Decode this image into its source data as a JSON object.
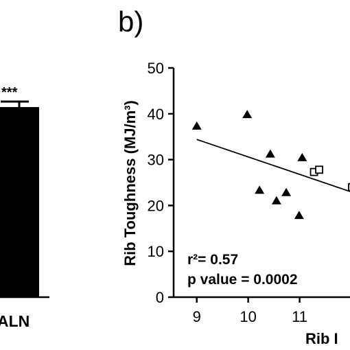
{
  "panel_label": "b)",
  "left_panel": {
    "bar_label": "ALN",
    "significance": "***"
  },
  "chart_data": {
    "type": "scatter",
    "ylabel": "Rib Toughness (MJ/m³)",
    "xlabel": "Rib I",
    "x_ticks": [
      "9",
      "10",
      "11"
    ],
    "y_ticks": [
      "0",
      "10",
      "20",
      "30",
      "40",
      "50"
    ],
    "xlim": [
      8.55,
      12.1
    ],
    "ylim": [
      0,
      50
    ],
    "annotation": {
      "r2_label": "r²= 0.57",
      "p_label": "p value = 0.0002"
    },
    "series": [
      {
        "marker": "triangle",
        "points": [
          [
            9.0,
            37.3
          ],
          [
            9.98,
            39.8
          ],
          [
            10.22,
            23.3
          ],
          [
            10.43,
            31.2
          ],
          [
            10.55,
            21.0
          ],
          [
            10.74,
            22.8
          ],
          [
            10.99,
            17.8
          ],
          [
            11.05,
            30.4
          ]
        ]
      },
      {
        "marker": "square-open",
        "points": [
          [
            11.28,
            27.3
          ],
          [
            11.38,
            27.8
          ],
          [
            12.02,
            24.0
          ]
        ]
      }
    ],
    "regression": {
      "x0": 9.0,
      "y0": 34.4,
      "x1": 12.1,
      "y1": 22.6
    }
  },
  "colors": {
    "ink": "#000000",
    "background": "#ffffff"
  }
}
